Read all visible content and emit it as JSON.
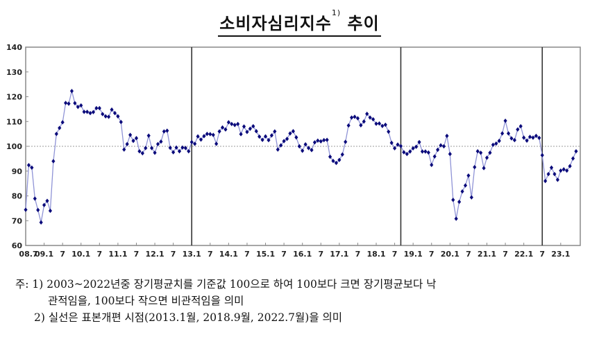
{
  "title": {
    "main": "소비자심리지수",
    "sup": "1)",
    "suffix": "추이"
  },
  "notes": {
    "prefix": "주:",
    "n1_line1": "1) 2003~2022년중 장기평균치를 기준값 100으로 하여 100보다 크면 장기평균보다 낙",
    "n1_line2": "관적임을, 100보다 작으면 비관적임을 의미",
    "n2": "2) 실선은 표본개편 시점(2013.1월, 2018.9월, 2022.7월)을 의미"
  },
  "colors": {
    "line": "#8f93d6",
    "marker": "#0a0a7a",
    "frame": "#888888",
    "reference": "#999999",
    "divider": "#333333"
  },
  "chart_data": {
    "type": "line",
    "title": "소비자심리지수 추이",
    "xlabel": "",
    "ylabel": "",
    "ylim": [
      60,
      140
    ],
    "yticks": [
      60,
      70,
      80,
      90,
      100,
      110,
      120,
      130,
      140
    ],
    "xtick_labels": [
      "08.7",
      "09.1",
      "7",
      "10.1",
      "7",
      "11.1",
      "7",
      "12.1",
      "7",
      "13.1",
      "7",
      "14.1",
      "7",
      "15.1",
      "7",
      "16.1",
      "7",
      "17.1",
      "7",
      "18.1",
      "7",
      "19.1",
      "7",
      "20.1",
      "7",
      "21.1",
      "7",
      "22.1",
      "7",
      "23.1"
    ],
    "reference_line": 100,
    "vertical_lines": [
      "2013.1",
      "2018.9",
      "2022.7"
    ],
    "grid": false,
    "start": "2008.7",
    "end": "2023.5",
    "series": [
      {
        "name": "소비자심리지수",
        "values": [
          74.4,
          92.4,
          91.4,
          78.9,
          74.3,
          69.3,
          76.3,
          78.0,
          74.0,
          94.0,
          105.0,
          107.4,
          109.7,
          117.5,
          117.2,
          122.3,
          117.4,
          115.9,
          116.5,
          113.9,
          113.9,
          113.4,
          113.8,
          115.4,
          115.4,
          113.0,
          112.1,
          111.9,
          114.8,
          113.4,
          112.1,
          109.8,
          98.7,
          100.9,
          104.6,
          102.2,
          103.3,
          98.0,
          97.2,
          99.3,
          104.3,
          99.3,
          97.4,
          100.9,
          101.9,
          106.0,
          106.3,
          99.4,
          97.6,
          99.5,
          98.0,
          99.5,
          99.3,
          98.0,
          101.7,
          101.0,
          104.0,
          102.7,
          104.1,
          105.0,
          104.9,
          104.6,
          101.0,
          106.0,
          107.6,
          106.8,
          109.7,
          109.0,
          108.6,
          109.0,
          104.9,
          108.0,
          105.8,
          107.1,
          108.1,
          106.1,
          103.9,
          102.6,
          104.0,
          102.5,
          104.4,
          106.0,
          98.7,
          100.4,
          102.1,
          103.0,
          105.2,
          106.1,
          103.6,
          100.0,
          98.2,
          100.8,
          99.3,
          98.5,
          101.6,
          102.3,
          102.0,
          102.5,
          102.6,
          95.8,
          94.1,
          93.3,
          94.5,
          96.7,
          101.8,
          108.4,
          111.6,
          111.9,
          111.3,
          108.5,
          110.0,
          113.1,
          111.6,
          110.9,
          109.1,
          109.2,
          108.2,
          108.7,
          105.9,
          101.4,
          99.2,
          100.7,
          100.1,
          97.6,
          96.9,
          97.9,
          99.2,
          99.8,
          101.7,
          97.9,
          97.9,
          97.5,
          92.5,
          95.9,
          98.6,
          100.4,
          100.0,
          104.2,
          96.9,
          78.4,
          70.8,
          77.6,
          81.8,
          84.2,
          88.2,
          79.4,
          91.6,
          98.0,
          97.4,
          91.2,
          95.4,
          97.4,
          100.6,
          101.1,
          102.2,
          105.2,
          110.3,
          105.2,
          103.2,
          102.5,
          106.8,
          108.1,
          103.5,
          102.3,
          103.8,
          103.5,
          104.2,
          103.4,
          96.4,
          86.0,
          88.8,
          91.4,
          88.8,
          86.5,
          90.2,
          90.7,
          90.2,
          92.0,
          95.1,
          98.0
        ]
      }
    ]
  }
}
